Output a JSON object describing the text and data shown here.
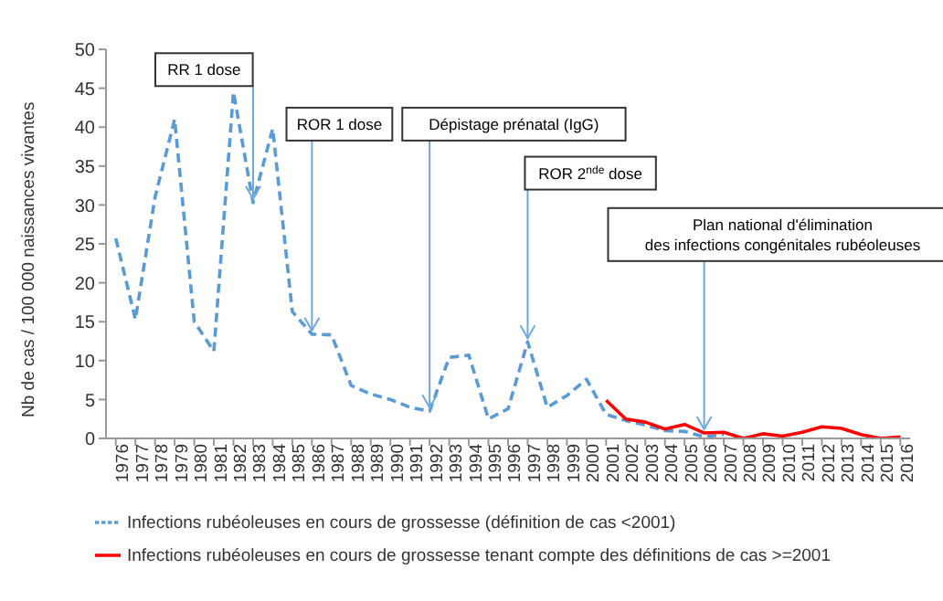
{
  "chart_data": {
    "type": "line",
    "ylabel": "Nb de cas / 100 000 naissances vivantes",
    "categories": [
      "1976",
      "1977",
      "1978",
      "1979",
      "1980",
      "1981",
      "1982",
      "1983",
      "1984",
      "1985",
      "1986",
      "1987",
      "1988",
      "1989",
      "1990",
      "1991",
      "1992",
      "1993",
      "1994",
      "1995",
      "1996",
      "1997",
      "1998",
      "1999",
      "2000",
      "2001",
      "2002",
      "2003",
      "2004",
      "2005",
      "2006",
      "2007",
      "2008",
      "2009",
      "2010",
      "2011",
      "2012",
      "2013",
      "2014",
      "2015",
      "2016"
    ],
    "series": [
      {
        "name": "Infections rubéoleuses en cours de grossesse (définition de cas <2001)",
        "color": "#5b9bd5",
        "line_style": "dashed",
        "values": [
          25.7,
          15.3,
          31,
          41,
          15,
          11.2,
          44.5,
          30.3,
          39.8,
          16.3,
          13.4,
          13.3,
          6.8,
          5.7,
          5,
          4,
          3.5,
          10.4,
          10.7,
          2.5,
          3.8,
          12.4,
          4,
          5.5,
          7.6,
          3.1,
          2.3,
          1.7,
          1,
          0.9,
          0.2,
          0.5,
          null,
          null,
          null,
          null,
          null,
          null,
          null,
          null,
          null
        ]
      },
      {
        "name": "Infections rubéoleuses en cours de grossesse tenant compte des définitions de cas >=2001",
        "color": "#ff0000",
        "line_style": "solid",
        "values": [
          null,
          null,
          null,
          null,
          null,
          null,
          null,
          null,
          null,
          null,
          null,
          null,
          null,
          null,
          null,
          null,
          null,
          null,
          null,
          null,
          null,
          null,
          null,
          null,
          null,
          4.9,
          2.5,
          2.1,
          1.2,
          1.8,
          0.7,
          0.8,
          0,
          0.6,
          0.3,
          0.8,
          1.5,
          1.3,
          0.5,
          0,
          0.2
        ]
      }
    ],
    "ylim": [
      0,
      50
    ],
    "yticks": [
      0,
      5,
      10,
      15,
      20,
      25,
      30,
      35,
      40,
      45,
      50
    ],
    "marker": "none",
    "legend": "bottom",
    "annotations": [
      {
        "text": "RR 1 dose",
        "x": "1983",
        "y": 30.3
      },
      {
        "text": "ROR 1 dose",
        "x": "1986",
        "y": 13.4
      },
      {
        "text": "Dépistage prénatal (IgG)",
        "x": "1992",
        "y": 3.5
      },
      {
        "text": "ROR 2$^{nde}$ dose",
        "x": "1997",
        "y": 12.4
      },
      {
        "text": "Plan national d'élimination\ndes infections congénitales rubéoleuses",
        "x": "2006",
        "y": 0.7
      }
    ]
  }
}
